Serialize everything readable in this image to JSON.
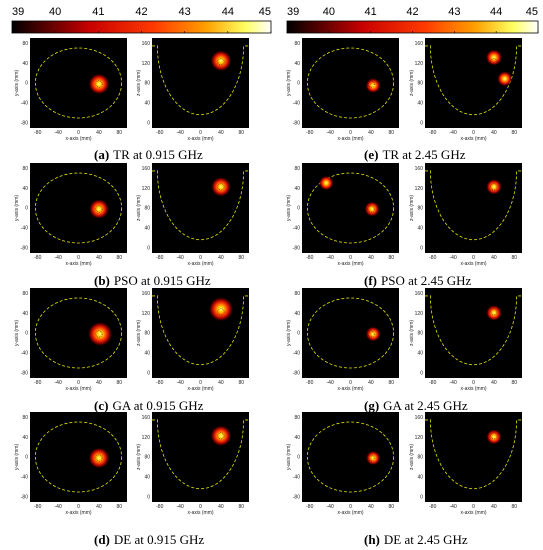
{
  "colorbar": {
    "ticks": [
      "39",
      "40",
      "41",
      "42",
      "43",
      "44",
      "45"
    ]
  },
  "axes": {
    "xy": {
      "xlabel": "x-axis (mm)",
      "ylabel": "y-axis (mm)",
      "xticks": [
        "-80",
        "-40",
        "0",
        "40",
        "80"
      ],
      "yticks": [
        "80",
        "40",
        "0",
        "-40",
        "-80"
      ]
    },
    "xz": {
      "xlabel": "x-axis (mm)",
      "ylabel": "z-axis (mm)",
      "xticks": [
        "-80",
        "-40",
        "0",
        "40",
        "80"
      ],
      "yticks": [
        "160",
        "120",
        "80",
        "40",
        "0"
      ]
    }
  },
  "panels": [
    {
      "letter": "(a)",
      "caption": "TR at 0.915 GHz",
      "xy_spots": [
        {
          "x": 38,
          "y": -2,
          "r": 22
        }
      ],
      "xz_spots": [
        {
          "x": 38,
          "z": 122,
          "r": 22
        }
      ]
    },
    {
      "letter": "(e)",
      "caption": "TR at 2.45 GHz",
      "xy_spots": [
        {
          "x": 42,
          "y": -5,
          "r": 12
        }
      ],
      "xz_spots": [
        {
          "x": 38,
          "z": 128,
          "r": 14
        },
        {
          "x": 58,
          "z": 88,
          "r": 12
        }
      ]
    },
    {
      "letter": "(b)",
      "caption": "PSO at 0.915 GHz",
      "xy_spots": [
        {
          "x": 38,
          "y": -2,
          "r": 20
        }
      ],
      "xz_spots": [
        {
          "x": 38,
          "z": 120,
          "r": 20
        }
      ]
    },
    {
      "letter": "(f)",
      "caption": "PSO at 2.45 GHz",
      "xy_spots": [
        {
          "x": 40,
          "y": -2,
          "r": 12
        },
        {
          "x": -45,
          "y": 50,
          "r": 11
        }
      ],
      "xz_spots": [
        {
          "x": 38,
          "z": 120,
          "r": 13
        }
      ]
    },
    {
      "letter": "(c)",
      "caption": "GA at 0.915 GHz",
      "xy_spots": [
        {
          "x": 40,
          "y": -2,
          "r": 28
        }
      ],
      "xz_spots": [
        {
          "x": 38,
          "z": 125,
          "r": 28
        }
      ]
    },
    {
      "letter": "(g)",
      "caption": "GA at 2.45 GHz",
      "xy_spots": [
        {
          "x": 42,
          "y": -2,
          "r": 12
        }
      ],
      "xz_spots": [
        {
          "x": 38,
          "z": 118,
          "r": 13
        }
      ]
    },
    {
      "letter": "(d)",
      "caption": "DE at 0.915 GHz",
      "xy_spots": [
        {
          "x": 38,
          "y": -2,
          "r": 22
        }
      ],
      "xz_spots": [
        {
          "x": 38,
          "z": 120,
          "r": 22
        }
      ]
    },
    {
      "letter": "(h)",
      "caption": "DE at 2.45 GHz",
      "xy_spots": [
        {
          "x": 42,
          "y": -2,
          "r": 11
        }
      ],
      "xz_spots": [
        {
          "x": 38,
          "z": 118,
          "r": 12
        }
      ]
    }
  ]
}
